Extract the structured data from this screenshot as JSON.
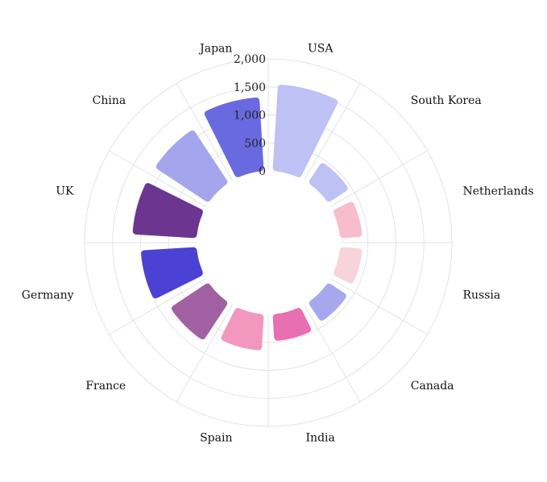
{
  "chart_data": {
    "type": "radial-bar",
    "categories": [
      "USA",
      "South Korea",
      "Netherlands",
      "Russia",
      "Canada",
      "India",
      "Spain",
      "France",
      "Germany",
      "UK",
      "China",
      "Japan"
    ],
    "values": [
      1550,
      450,
      400,
      400,
      420,
      480,
      650,
      820,
      1000,
      1150,
      1150,
      1320
    ],
    "colors": [
      "#BEC1F4",
      "#BEC1F4",
      "#F7BDCC",
      "#F7D3DA",
      "#A6A8EE",
      "#E86FB1",
      "#F297BE",
      "#A160A2",
      "#4B41D3",
      "#6C3590",
      "#A4A5EC",
      "#6A6AE0"
    ],
    "radial_axis": {
      "ticks": [
        0,
        500,
        1000,
        1500,
        2000
      ],
      "tick_labels": [
        "0",
        "500",
        "1,000",
        "1,500",
        "2,000"
      ],
      "range": [
        0,
        2000
      ]
    },
    "grid": true,
    "title": "",
    "xlabel": "",
    "ylabel": ""
  }
}
